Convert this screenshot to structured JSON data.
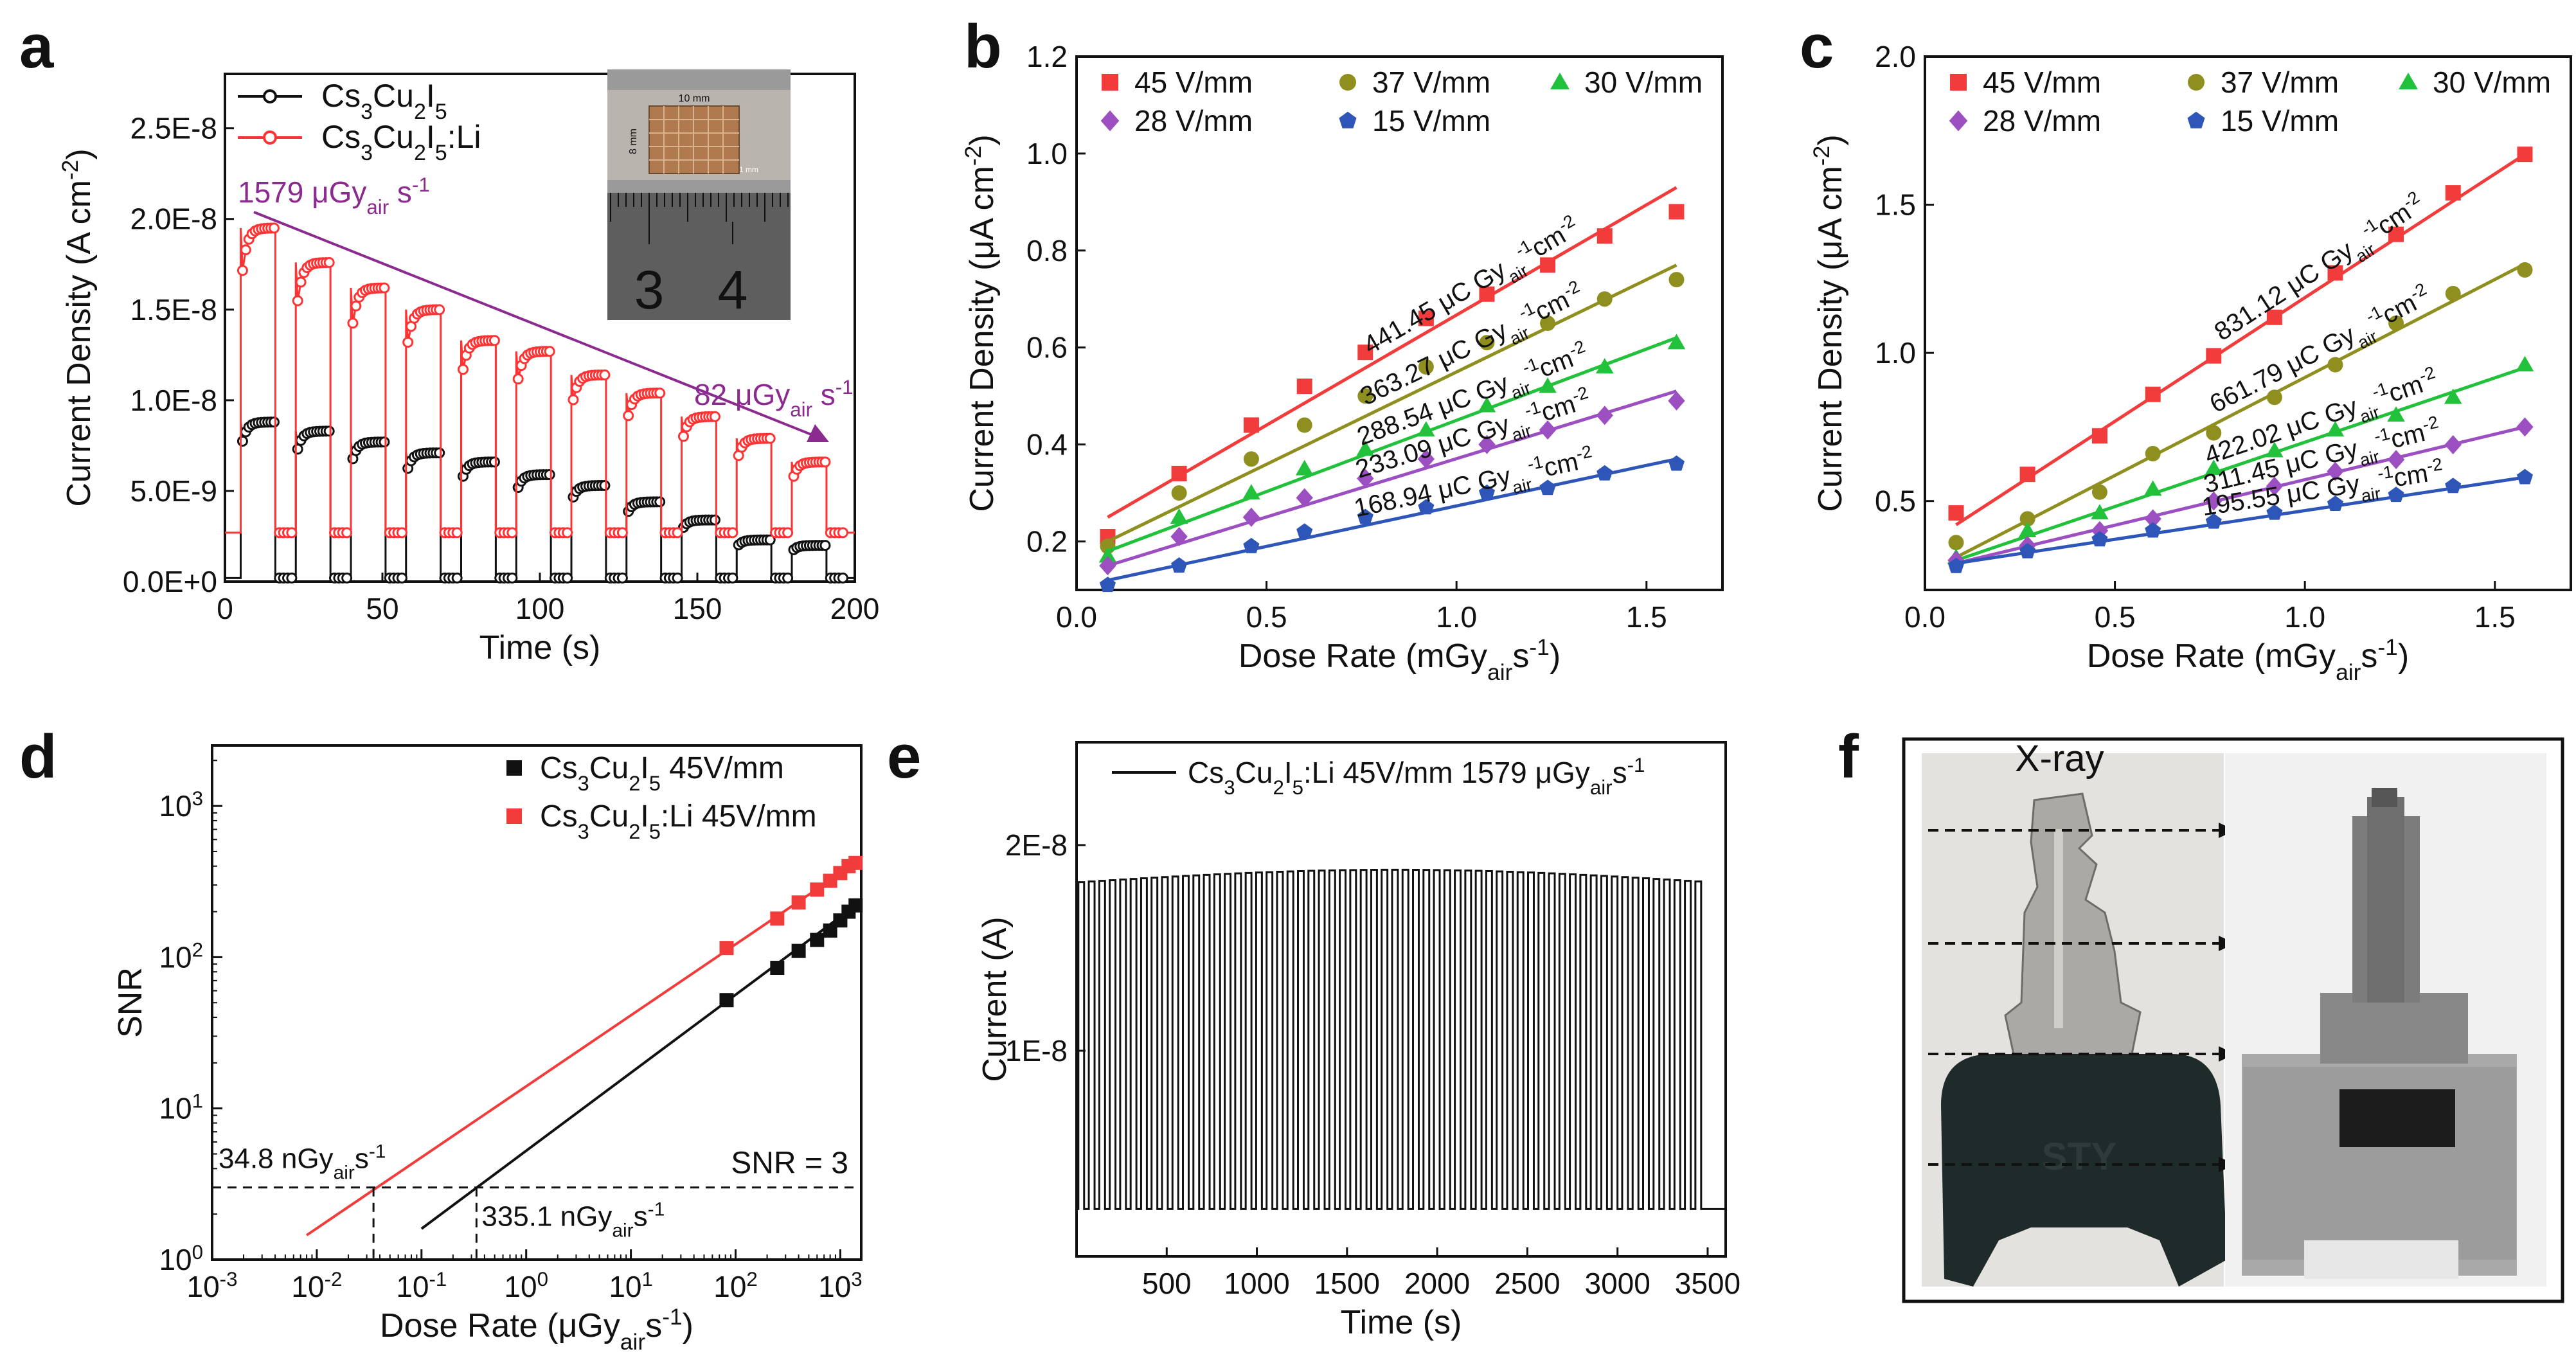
{
  "chart_data": [
    {
      "panel": "a",
      "type": "line",
      "xlabel": "Time (s)",
      "ylabel": "Current Density (A cm",
      "ylabel_sup": "-2",
      "ylabel_end": ")",
      "xlim": [
        0,
        200
      ],
      "ylim": [
        0,
        2.8e-08
      ],
      "xticks": [
        0,
        50,
        100,
        150,
        200
      ],
      "yticks": [
        0,
        5e-09,
        1e-08,
        1.5e-08,
        2e-08,
        2.5e-08
      ],
      "ytick_labels": [
        "0.0E+0",
        "5.0E-9",
        "1.0E-8",
        "1.5E-8",
        "2.0E-8",
        "2.5E-8"
      ],
      "pulse_starts": [
        5,
        22.5,
        40,
        57.5,
        75,
        92.5,
        110,
        127.5,
        145,
        162.5,
        180
      ],
      "pulse_width": 11,
      "series": [
        {
          "name": "Cs3Cu2I5",
          "color": "#111111",
          "baseline": 2e-10,
          "on_values": [
            8.8e-09,
            8.3e-09,
            7.7e-09,
            7.1e-09,
            6.6e-09,
            5.9e-09,
            5.3e-09,
            4.4e-09,
            3.4e-09,
            2.3e-09,
            2e-09
          ]
        },
        {
          "name": "Cs3Cu2I5:Li",
          "color": "#ff3333",
          "baseline": 2.7e-09,
          "on_values": [
            1.95e-08,
            1.76e-08,
            1.62e-08,
            1.5e-08,
            1.33e-08,
            1.27e-08,
            1.14e-08,
            1.04e-08,
            9.1e-09,
            7.9e-09,
            6.6e-09
          ]
        }
      ],
      "legend": [
        {
          "base": "Cs",
          "parts": [
            [
              "Cs",
              ""
            ],
            [
              "3",
              "sub"
            ],
            [
              "Cu",
              ""
            ],
            [
              "2",
              "sub"
            ],
            [
              "I",
              ""
            ],
            [
              "5",
              "sub"
            ]
          ]
        },
        {
          "parts": [
            [
              "Cs",
              ""
            ],
            [
              "3",
              "sub"
            ],
            [
              "Cu",
              ""
            ],
            [
              "2",
              "sub"
            ],
            [
              "I",
              ""
            ],
            [
              "5",
              "sub"
            ],
            [
              ":Li",
              ""
            ]
          ]
        }
      ],
      "annotation_start": "1579 μGy",
      "annotation_start_sub": "air",
      "annotation_start_end": " s",
      "annotation_start_sup": "-1",
      "annotation_end": "82 μGy",
      "annotation_end_sub": "air",
      "annotation_end_end": " s",
      "annotation_end_sup": "-1",
      "arrow_color": "#8b2a8f",
      "inset": {
        "label_w": "10 mm",
        "label_h": "8 mm",
        "label_pixel": "1 mm",
        "ruler_3": "3",
        "ruler_4": "4"
      }
    },
    {
      "panel": "b",
      "type": "scatter",
      "xlabel": "Dose Rate (mGy",
      "xlabel_sub": "air",
      "xlabel_end": "s",
      "xlabel_sup": "-1",
      "xlabel_close": ")",
      "ylabel": "Current Density (μA cm",
      "ylabel_sup": "-2",
      "ylabel_end": ")",
      "xlim": [
        0,
        1.7
      ],
      "ylim": [
        0.1,
        1.2
      ],
      "xticks": [
        0.0,
        0.5,
        1.0,
        1.5
      ],
      "yticks": [
        0.2,
        0.4,
        0.6,
        0.8,
        1.0,
        1.2
      ],
      "x": [
        0.082,
        0.27,
        0.46,
        0.6,
        0.76,
        0.92,
        1.08,
        1.24,
        1.39,
        1.579
      ],
      "series": [
        {
          "name": "45 V/mm",
          "color": "#f23c3c",
          "marker": "square",
          "values": [
            0.21,
            0.34,
            0.44,
            0.52,
            0.59,
            0.66,
            0.71,
            0.77,
            0.83,
            0.88
          ],
          "fit": [
            0.25,
            0.93
          ],
          "sensitivity": "441.45 μC Gy"
        },
        {
          "name": "37 V/mm",
          "color": "#8f8f1f",
          "marker": "circle",
          "values": [
            0.19,
            0.3,
            0.37,
            0.44,
            0.5,
            0.56,
            0.61,
            0.65,
            0.7,
            0.74
          ],
          "fit": [
            0.2,
            0.77
          ],
          "sensitivity": "363.27 μC Gy"
        },
        {
          "name": "30 V/mm",
          "color": "#22c13b",
          "marker": "triangle",
          "values": [
            0.17,
            0.25,
            0.3,
            0.35,
            0.39,
            0.43,
            0.48,
            0.52,
            0.56,
            0.61
          ],
          "fit": [
            0.18,
            0.62
          ],
          "sensitivity": "288.54 μC Gy"
        },
        {
          "name": "28 V/mm",
          "color": "#9b4fc1",
          "marker": "diamond",
          "values": [
            0.15,
            0.21,
            0.25,
            0.29,
            0.33,
            0.37,
            0.4,
            0.43,
            0.46,
            0.49
          ],
          "fit": [
            0.15,
            0.51
          ],
          "sensitivity": "233.09 μC Gy"
        },
        {
          "name": "15 V/mm",
          "color": "#2e56b8",
          "marker": "pentagon",
          "values": [
            0.11,
            0.15,
            0.19,
            0.22,
            0.25,
            0.27,
            0.3,
            0.31,
            0.34,
            0.36
          ],
          "fit": [
            0.12,
            0.37
          ],
          "sensitivity": "168.94 μC Gy"
        }
      ],
      "sens_sub": "air",
      "sens_sup1": "-1",
      "sens_cm": "cm",
      "sens_sup2": "-2"
    },
    {
      "panel": "c",
      "type": "scatter",
      "xlabel": "Dose Rate (mGy",
      "xlabel_sub": "air",
      "xlabel_end": "s",
      "xlabel_sup": "-1",
      "xlabel_close": ")",
      "ylabel": "Current Density (μA cm",
      "ylabel_sup": "-2",
      "ylabel_end": ")",
      "xlim": [
        0,
        1.7
      ],
      "ylim": [
        0.2,
        2.0
      ],
      "xticks": [
        0.0,
        0.5,
        1.0,
        1.5
      ],
      "yticks": [
        0.5,
        1.0,
        1.5,
        2.0
      ],
      "x": [
        0.082,
        0.27,
        0.46,
        0.6,
        0.76,
        0.92,
        1.08,
        1.24,
        1.39,
        1.579
      ],
      "series": [
        {
          "name": "45 V/mm",
          "color": "#f23c3c",
          "marker": "square",
          "values": [
            0.46,
            0.59,
            0.72,
            0.86,
            0.99,
            1.12,
            1.27,
            1.4,
            1.54,
            1.67
          ],
          "fit": [
            0.42,
            1.67
          ],
          "sensitivity": "831.12 μC Gy"
        },
        {
          "name": "37 V/mm",
          "color": "#8f8f1f",
          "marker": "circle",
          "values": [
            0.36,
            0.44,
            0.53,
            0.66,
            0.73,
            0.85,
            0.96,
            1.1,
            1.2,
            1.28
          ],
          "fit": [
            0.31,
            1.3
          ],
          "sensitivity": "661.79 μC Gy"
        },
        {
          "name": "30 V/mm",
          "color": "#22c13b",
          "marker": "triangle",
          "values": [
            0.31,
            0.4,
            0.46,
            0.54,
            0.61,
            0.67,
            0.74,
            0.79,
            0.85,
            0.96
          ],
          "fit": [
            0.3,
            0.95
          ],
          "sensitivity": "422.02 μC Gy"
        },
        {
          "name": "28 V/mm",
          "color": "#9b4fc1",
          "marker": "diamond",
          "values": [
            0.3,
            0.35,
            0.4,
            0.44,
            0.5,
            0.55,
            0.6,
            0.64,
            0.69,
            0.75
          ],
          "fit": [
            0.29,
            0.75
          ],
          "sensitivity": "311.45 μC Gy"
        },
        {
          "name": "15 V/mm",
          "color": "#2e56b8",
          "marker": "pentagon",
          "values": [
            0.28,
            0.33,
            0.37,
            0.4,
            0.43,
            0.46,
            0.49,
            0.52,
            0.55,
            0.58
          ],
          "fit": [
            0.29,
            0.58
          ],
          "sensitivity": "195.55 μC Gy"
        }
      ],
      "sens_sub": "air",
      "sens_sup1": "-1",
      "sens_cm": "cm",
      "sens_sup2": "-2"
    },
    {
      "panel": "d",
      "type": "scatter",
      "xscale": "log",
      "yscale": "log",
      "xlabel": "Dose Rate (μGy",
      "xlabel_sub": "air",
      "xlabel_end": "s",
      "xlabel_sup": "-1",
      "xlabel_close": ")",
      "ylabel": "SNR",
      "xlim_exp": [
        -3,
        3.2
      ],
      "ylim_exp": [
        0,
        3.4
      ],
      "xtick_exps": [
        -3,
        -2,
        -1,
        0,
        1,
        2,
        3
      ],
      "ytick_exps": [
        0,
        1,
        2,
        3
      ],
      "tick_base": "10",
      "series": [
        {
          "name": "Cs3Cu2I5 45V/mm",
          "color": "#111111",
          "x": [
            82,
            250,
            400,
            600,
            800,
            1000,
            1200,
            1400
          ],
          "y": [
            52,
            85,
            110,
            130,
            150,
            175,
            200,
            220
          ],
          "fit_x": [
            0.1,
            1400
          ],
          "fit_y": [
            1.6,
            220
          ]
        },
        {
          "name": "Cs3Cu2I5:Li 45V/mm",
          "color": "#f23c3c",
          "x": [
            82,
            250,
            400,
            600,
            800,
            1000,
            1200,
            1400
          ],
          "y": [
            115,
            180,
            230,
            280,
            320,
            360,
            400,
            420
          ],
          "fit_x": [
            0.008,
            1400
          ],
          "fit_y": [
            1.45,
            420
          ]
        }
      ],
      "legend": [
        {
          "parts": [
            [
              "Cs",
              ""
            ],
            [
              "3",
              "sub"
            ],
            [
              "Cu",
              ""
            ],
            [
              "2",
              "sub"
            ],
            [
              "I",
              ""
            ],
            [
              "5",
              "sub"
            ],
            [
              " 45V/mm",
              ""
            ]
          ]
        },
        {
          "parts": [
            [
              "Cs",
              ""
            ],
            [
              "3",
              "sub"
            ],
            [
              "Cu",
              ""
            ],
            [
              "2",
              "sub"
            ],
            [
              "I",
              ""
            ],
            [
              "5",
              "sub"
            ],
            [
              ":Li 45V/mm",
              ""
            ]
          ]
        }
      ],
      "snr_line": 3,
      "snr_label": "SNR = 3",
      "lod_li": 0.0348,
      "lod_li_label": "34.8 nGy",
      "lod_pure": 0.3351,
      "lod_pure_label": "335.1 nGy",
      "lod_sub": "air",
      "lod_s": "s",
      "lod_sup": "-1"
    },
    {
      "panel": "e",
      "type": "line",
      "xlabel": "Time (s)",
      "ylabel": "Current (A)",
      "xlim": [
        0,
        3600
      ],
      "ylim": [
        0,
        2.5e-08
      ],
      "xticks": [
        500,
        1000,
        1500,
        2000,
        2500,
        3000,
        3500
      ],
      "yticks": [
        1e-08,
        2e-08
      ],
      "ytick_labels": [
        "1E-8",
        "2E-8"
      ],
      "cycles": 60,
      "cycle_period": 58,
      "on_current": 1.82e-08,
      "on_current_peak": 1.88e-08,
      "off_current": 2.3e-09,
      "legend": {
        "parts": [
          [
            "Cs",
            ""
          ],
          [
            "3",
            "sub"
          ],
          [
            "Cu",
            ""
          ],
          [
            "2",
            "sub"
          ],
          [
            "I",
            ""
          ],
          [
            "5",
            "sub"
          ],
          [
            ":Li 45V/mm 1579 μGy",
            ""
          ],
          [
            "air",
            "sub"
          ],
          [
            "s",
            ""
          ],
          [
            "-1",
            "sup"
          ]
        ]
      }
    }
  ],
  "panel_f": {
    "label": "f",
    "title": "X-ray",
    "photo_text": "STY"
  },
  "panel_labels": {
    "a": "a",
    "b": "b",
    "c": "c",
    "d": "d",
    "e": "e",
    "f": "f"
  }
}
